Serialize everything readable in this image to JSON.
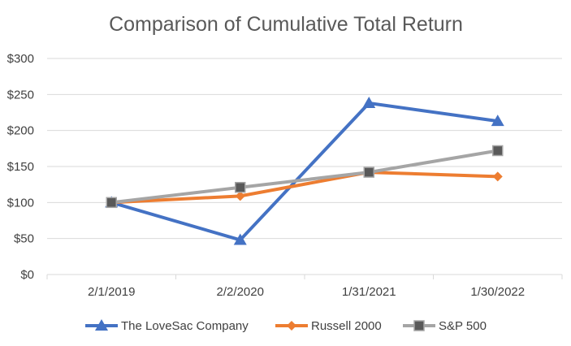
{
  "chart_data": {
    "type": "line",
    "title": "Comparison of Cumulative Total Return",
    "xlabel": "",
    "ylabel": "",
    "categories": [
      "2/1/2019",
      "2/2/2020",
      "1/31/2021",
      "1/30/2022"
    ],
    "ylim": [
      0,
      300
    ],
    "yticks": [
      0,
      50,
      100,
      150,
      200,
      250,
      300
    ],
    "ytick_labels": [
      "$0",
      "$50",
      "$100",
      "$150",
      "$200",
      "$250",
      "$300"
    ],
    "grid": true,
    "legend_position": "bottom",
    "series": [
      {
        "name": "The LoveSac Company",
        "values": [
          100,
          48,
          238,
          213
        ],
        "color": "#4472c4",
        "marker": "triangle"
      },
      {
        "name": "Russell 2000",
        "values": [
          100,
          109,
          142,
          136
        ],
        "color": "#ed7d31",
        "marker": "diamond"
      },
      {
        "name": "S&P 500",
        "values": [
          100,
          121,
          142,
          172
        ],
        "color": "#a5a5a5",
        "marker": "square",
        "marker_color": "#595959"
      }
    ]
  }
}
